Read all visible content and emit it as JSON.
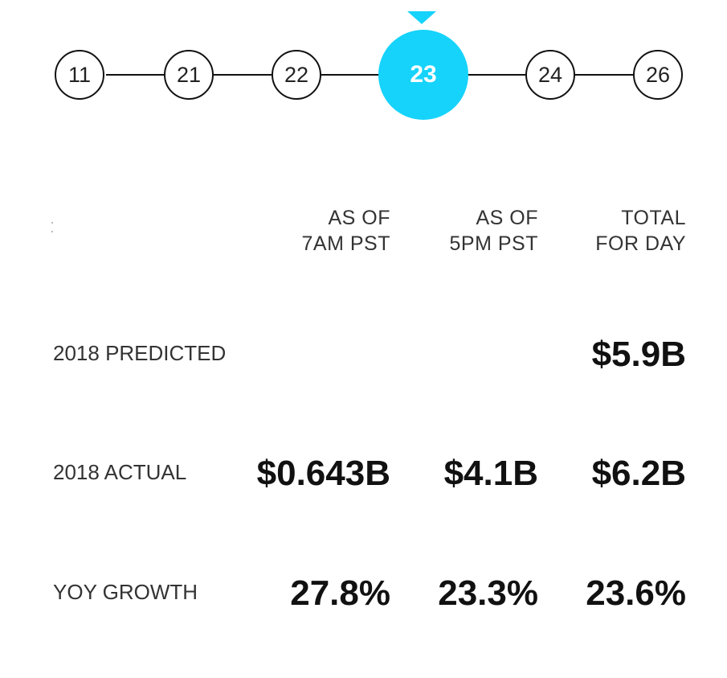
{
  "timeline": {
    "nodes": [
      {
        "label": "11",
        "active": false
      },
      {
        "label": "21",
        "active": false
      },
      {
        "label": "22",
        "active": false
      },
      {
        "label": "23",
        "active": true
      },
      {
        "label": "24",
        "active": false
      },
      {
        "label": "26",
        "active": false
      }
    ],
    "accent_color": "#16d3fb"
  },
  "columns": {
    "col1": {
      "line1": "AS OF",
      "line2": "7AM PST"
    },
    "col2": {
      "line1": "AS OF",
      "line2": "5PM PST"
    },
    "col3": {
      "line1": "TOTAL",
      "line2": "FOR DAY"
    }
  },
  "rows": {
    "predicted": {
      "label": "2018 PREDICTED",
      "col1": "",
      "col2": "",
      "col3": "$5.9B"
    },
    "actual": {
      "label": "2018 ACTUAL",
      "col1": "$0.643B",
      "col2": "$4.1B",
      "col3": "$6.2B"
    },
    "growth": {
      "label": "YOY GROWTH",
      "col1": "27.8%",
      "col2": "23.3%",
      "col3": "23.6%"
    }
  }
}
